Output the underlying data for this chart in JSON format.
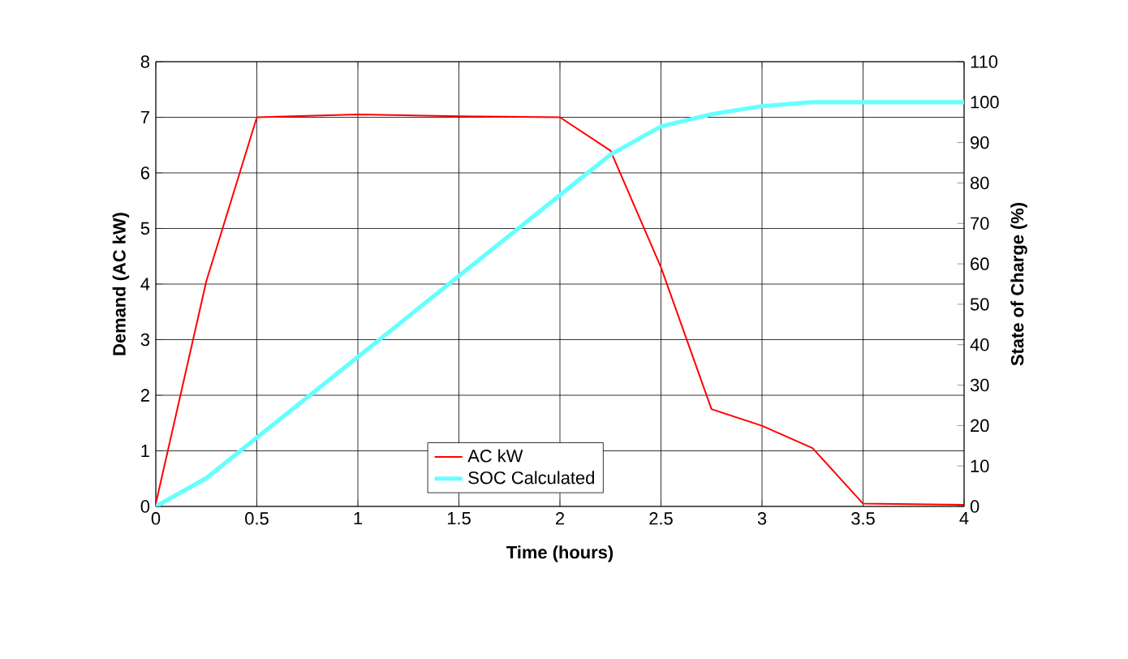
{
  "chart_data": {
    "type": "line",
    "xlabel": "Time (hours)",
    "ylabel": "Demand (AC kW)",
    "y2label": "State of Charge (%)",
    "x": [
      0,
      0.25,
      0.5,
      1,
      1.5,
      2,
      2.25,
      2.5,
      2.75,
      3,
      3.25,
      3.5,
      4
    ],
    "series": [
      {
        "name": "AC kW",
        "color": "#ff0000",
        "axis": "y",
        "values": [
          0.05,
          4.05,
          7.0,
          7.05,
          7.02,
          7.0,
          6.4,
          4.3,
          1.75,
          1.45,
          1.05,
          0.05,
          0.03
        ]
      },
      {
        "name": "SOC Calculated",
        "color": "#66ffff",
        "axis": "y2",
        "values": [
          0,
          7,
          17,
          37,
          57,
          77,
          87,
          94,
          97,
          99,
          100,
          100,
          100
        ]
      }
    ],
    "xlim": [
      0,
      4
    ],
    "xticks": [
      0,
      0.5,
      1,
      1.5,
      2,
      2.5,
      3,
      3.5,
      4
    ],
    "ylim": [
      0,
      8
    ],
    "yticks": [
      0,
      1,
      2,
      3,
      4,
      5,
      6,
      7,
      8
    ],
    "y2lim": [
      0,
      110
    ],
    "y2ticks": [
      0,
      10,
      20,
      30,
      40,
      50,
      60,
      70,
      80,
      90,
      100,
      110
    ],
    "grid": true,
    "legend": "bottom"
  }
}
